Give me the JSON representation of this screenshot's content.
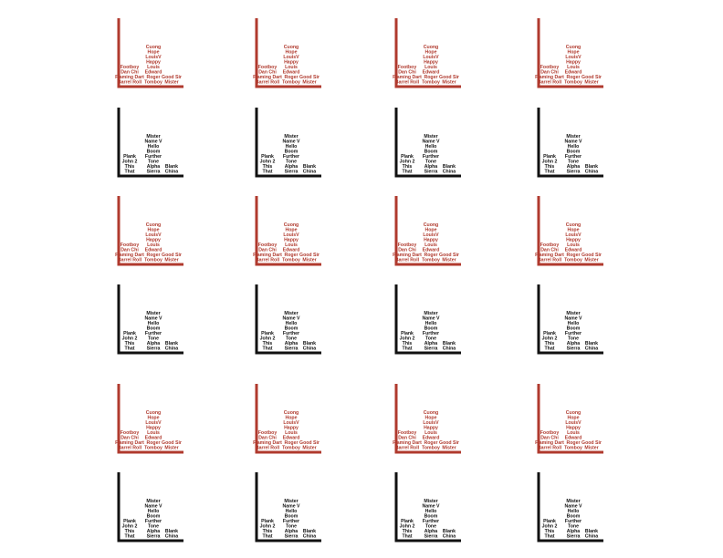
{
  "chart_data": {
    "type": "bar",
    "title": "",
    "xlabel": "",
    "ylabel": "",
    "grid": false,
    "legend": "none",
    "colors": {
      "red": "#b03a2e",
      "black": "#111111"
    },
    "layout_rows": [
      "red",
      "black",
      "red",
      "black",
      "red",
      "black"
    ],
    "charts_per_row": 4,
    "variants": {
      "red": {
        "columns": [
          {
            "labels": [
              "Barrel Roll",
              "Flaming Dart",
              "Dan Chi",
              "Footboy"
            ]
          },
          {
            "labels": [
              "Tomboy",
              "Roger",
              "Edward",
              "Louis",
              "Happy",
              "LouisV",
              "Hope",
              "Cuong"
            ]
          },
          {
            "labels": [
              "Mister",
              "Good Sir"
            ]
          }
        ]
      },
      "black": {
        "columns": [
          {
            "labels": [
              "That",
              "This",
              "John 2",
              "Plank"
            ]
          },
          {
            "labels": [
              "Sierra",
              "Alpha",
              "Tone",
              "Further",
              "Boom",
              "Hello",
              "Name V",
              "Mister"
            ]
          },
          {
            "labels": [
              "China",
              "Blank"
            ]
          }
        ]
      }
    }
  }
}
